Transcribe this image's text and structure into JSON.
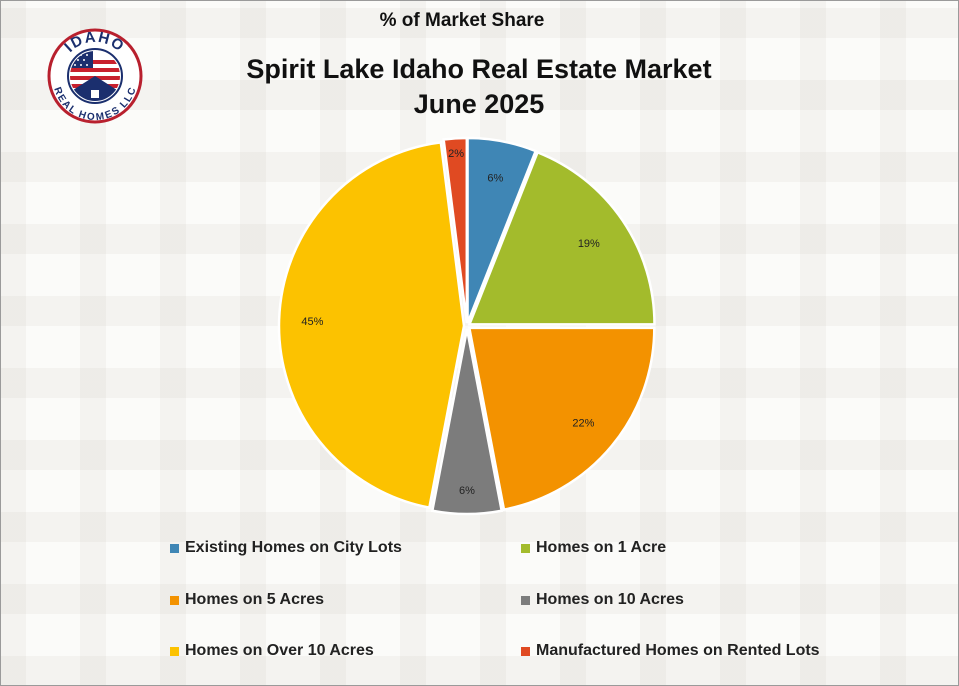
{
  "header": {
    "top_title": "% of Market Share",
    "title_line1": "Spirit Lake Idaho Real Estate Market",
    "title_line2": "June 2025"
  },
  "logo": {
    "text_top": "IDAHO",
    "text_bottom": "REAL HOMES LLC",
    "icon": "american-flag-house-logo"
  },
  "colors": {
    "existing_city_lots": "#3f86b5",
    "homes_1_acre": "#a3bb2c",
    "homes_5_acres": "#f39200",
    "homes_10_acres": "#7c7c7c",
    "homes_over_10_acres": "#fcc200",
    "manufactured_rented": "#e04a22"
  },
  "chart_data": {
    "type": "pie",
    "title": "Spirit Lake Idaho Real Estate Market June 2025",
    "subtitle": "% of Market Share",
    "legend_position": "bottom",
    "slices": [
      {
        "label": "Existing Homes on City Lots",
        "value": 6,
        "display": "6%",
        "color": "#3f86b5"
      },
      {
        "label": "Homes on 1 Acre",
        "value": 19,
        "display": "19%",
        "color": "#a3bb2c"
      },
      {
        "label": "Homes on 5 Acres",
        "value": 22,
        "display": "22%",
        "color": "#f39200"
      },
      {
        "label": "Homes on 10 Acres",
        "value": 6,
        "display": "6%",
        "color": "#7c7c7c"
      },
      {
        "label": "Homes on Over 10 Acres",
        "value": 45,
        "display": "45%",
        "color": "#fcc200"
      },
      {
        "label": "Manufactured Homes on Rented Lots",
        "value": 2,
        "display": "2%",
        "color": "#e04a22"
      }
    ]
  }
}
